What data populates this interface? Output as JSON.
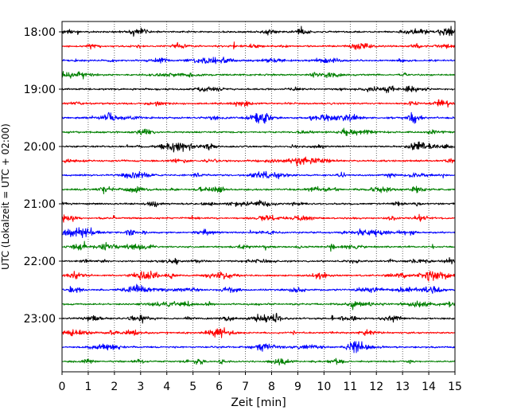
{
  "chart_data": {
    "type": "line",
    "title": "",
    "xlabel": "Zeit  [min]",
    "ylabel": "UTC (Lokalzeit = UTC + 02:00)",
    "xlim": [
      0,
      15
    ],
    "x_ticks": [
      "0",
      "1",
      "2",
      "3",
      "4",
      "5",
      "6",
      "7",
      "8",
      "9",
      "10",
      "11",
      "12",
      "13",
      "14",
      "15"
    ],
    "y_tick_labels": [
      "18:00",
      "19:00",
      "20:00",
      "21:00",
      "22:00",
      "23:00"
    ],
    "row_interval_minutes": 15,
    "grid": "vertical dotted",
    "series_colors": [
      "#000000",
      "#ff0000",
      "#0000ff",
      "#008000"
    ],
    "rows": [
      {
        "start": "18:00",
        "color": "#000000"
      },
      {
        "start": "18:15",
        "color": "#ff0000"
      },
      {
        "start": "18:30",
        "color": "#0000ff"
      },
      {
        "start": "18:45",
        "color": "#008000"
      },
      {
        "start": "19:00",
        "color": "#000000"
      },
      {
        "start": "19:15",
        "color": "#ff0000"
      },
      {
        "start": "19:30",
        "color": "#0000ff"
      },
      {
        "start": "19:45",
        "color": "#008000"
      },
      {
        "start": "20:00",
        "color": "#000000"
      },
      {
        "start": "20:15",
        "color": "#ff0000"
      },
      {
        "start": "20:30",
        "color": "#0000ff"
      },
      {
        "start": "20:45",
        "color": "#008000"
      },
      {
        "start": "21:00",
        "color": "#000000"
      },
      {
        "start": "21:15",
        "color": "#ff0000"
      },
      {
        "start": "21:30",
        "color": "#0000ff"
      },
      {
        "start": "21:45",
        "color": "#008000"
      },
      {
        "start": "22:00",
        "color": "#000000"
      },
      {
        "start": "22:15",
        "color": "#ff0000"
      },
      {
        "start": "22:30",
        "color": "#0000ff"
      },
      {
        "start": "22:45",
        "color": "#008000"
      },
      {
        "start": "23:00",
        "color": "#000000"
      },
      {
        "start": "23:15",
        "color": "#ff0000"
      },
      {
        "start": "23:30",
        "color": "#0000ff"
      },
      {
        "start": "23:45",
        "color": "#008000"
      }
    ]
  }
}
